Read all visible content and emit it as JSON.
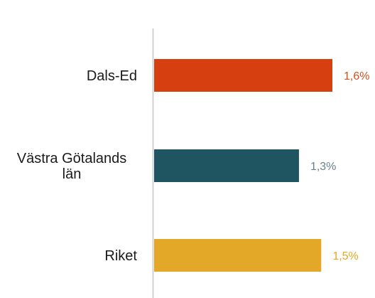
{
  "chart_data": {
    "type": "bar",
    "orientation": "horizontal",
    "categories": [
      [
        "Dals-Ed"
      ],
      [
        "Västra Götalands",
        "län"
      ],
      [
        "Riket"
      ]
    ],
    "values": [
      1.6,
      1.3,
      1.5
    ],
    "value_labels": [
      "1,6%",
      "1,3%",
      "1,5%"
    ],
    "colors": [
      "#d63f10",
      "#1f5560",
      "#e3a827"
    ],
    "value_label_colors": [
      "#d4501f",
      "#6b8088",
      "#e3a827"
    ],
    "axis_color": "#d0d0d0",
    "xlim": [
      0,
      1.6
    ],
    "grid": false,
    "legend": "none"
  }
}
